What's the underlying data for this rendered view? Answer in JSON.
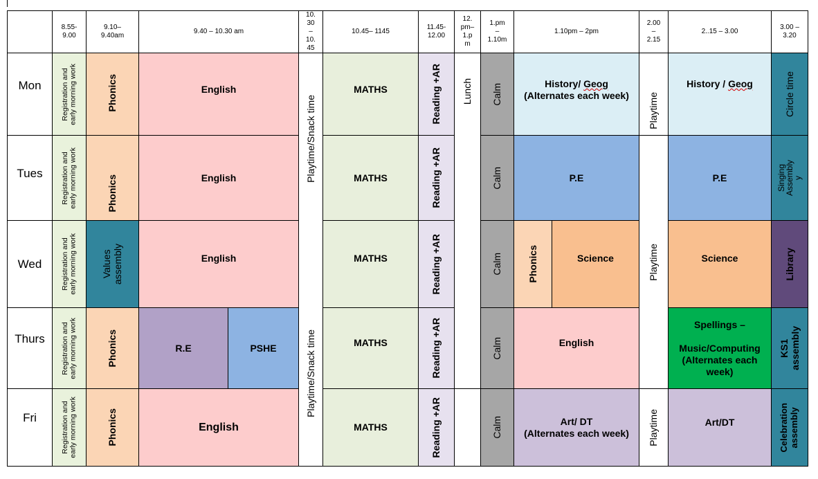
{
  "header": {
    "t1": "8.55-\n9.00",
    "t2": "9.10–\n9.40am",
    "t3": "9.40 – 10.30 am",
    "t4": "10.\n30\n–\n10.\n45",
    "t5": "10.45– 1145",
    "t6": "11.45-\n12.00",
    "t7": "12.\npm–\n1.p\nm",
    "t8": "1.pm\n–\n1.10m",
    "t9": "1.10pm – 2pm",
    "t10": "2.00\n–\n2.15",
    "t11": "2..15 – 3.00",
    "t12": "3.00 –\n3.20"
  },
  "days": [
    "Mon",
    "Tues",
    "Wed",
    "Thurs",
    "Fri"
  ],
  "registration": "Registration and\nearly morning work",
  "registration_wed": "Registration and\nearly morning work",
  "phonics": "Phonics",
  "values_assembly": "Values\nassembly",
  "english": "English",
  "re": "R.E",
  "pshe": "PSHE",
  "playtime_snack": "Playtime/Snack time",
  "maths": "MATHS",
  "reading_ar": "Reading +AR",
  "lunch": "Lunch",
  "calm": "Calm",
  "mon_afternoon": {
    "line1": "History/ ",
    "geog": "Geog",
    "line2": "(Alternates each week)"
  },
  "mon_late": {
    "prefix": "History / ",
    "geog": "Geog"
  },
  "pe": "P.E",
  "science": "Science",
  "playtime": "Playtime",
  "spellings": {
    "line1": "Spellings –",
    "line2": "Music/Computing\n(Alternates each\nweek)"
  },
  "fri_art": "Art/ DT\n(Alternates each week)",
  "fri_art2": "Art/DT",
  "last_col": {
    "mon": "Circle time",
    "tue": "Singing\nAssembly\ny",
    "wed": "Library",
    "thu": "KS1\nassembly",
    "fri": "Celebration\nassembly"
  },
  "colors": {
    "registration": "#e9f2dc",
    "phonics": "#fbd5b5",
    "english": "#fdcccc",
    "maths": "#e8efdc",
    "reading": "#e7e1ef",
    "calm": "#a6a6a6",
    "history": "#dbeef5",
    "pe": "#8db3e2",
    "teal": "#31859c",
    "science": "#f9bf8f",
    "library": "#604a7b",
    "re": "#b1a1c7",
    "music": "#00b050",
    "art": "#ccc0da"
  }
}
